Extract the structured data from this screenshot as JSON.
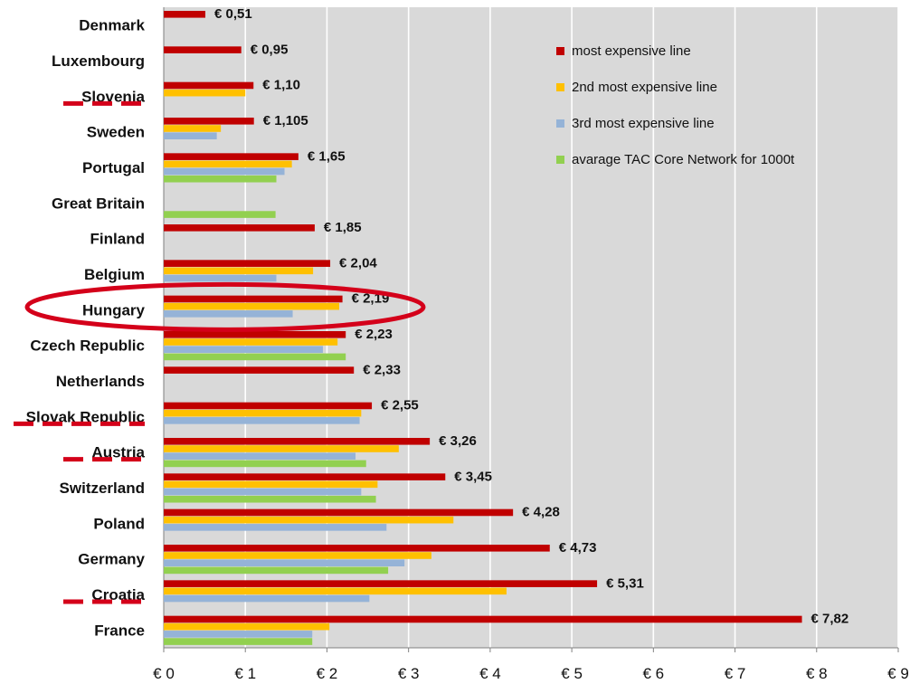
{
  "chart_data": {
    "type": "bar",
    "orientation": "horizontal",
    "xlim": [
      0,
      9
    ],
    "x_ticks": [
      "€ 0",
      "€ 1",
      "€ 2",
      "€ 3",
      "€ 4",
      "€ 5",
      "€ 6",
      "€ 7",
      "€ 8",
      "€ 9"
    ],
    "categories": [
      "Denmark",
      "Luxembourg",
      "Slovenia",
      "Sweden",
      "Portugal",
      "Great Britain",
      "Finland",
      "Belgium",
      "Hungary",
      "Czech Republic",
      "Netherlands",
      "Slovak Republic",
      "Austria",
      "Switzerland",
      "Poland",
      "Germany",
      "Croatia",
      "France"
    ],
    "series": [
      {
        "name": "most expensive line",
        "color": "#c00000",
        "values": [
          0.51,
          0.95,
          1.1,
          1.105,
          1.65,
          null,
          1.85,
          2.04,
          2.19,
          2.23,
          2.33,
          2.55,
          3.26,
          3.45,
          4.28,
          4.73,
          5.31,
          7.82
        ]
      },
      {
        "name": "2nd most expensive line",
        "color": "#ffc000",
        "values": [
          null,
          null,
          1.0,
          0.7,
          1.57,
          null,
          null,
          1.83,
          2.15,
          2.13,
          null,
          2.42,
          2.88,
          2.62,
          3.55,
          3.28,
          4.2,
          2.03
        ]
      },
      {
        "name": "3rd most expensive line",
        "color": "#95b3d7",
        "values": [
          null,
          null,
          null,
          0.65,
          1.48,
          null,
          null,
          1.38,
          1.58,
          1.95,
          null,
          2.4,
          2.35,
          2.42,
          2.73,
          2.95,
          2.52,
          1.82
        ]
      },
      {
        "name": "avarage TAC Core Network for 1000t",
        "color": "#92d050",
        "values": [
          null,
          null,
          null,
          null,
          1.38,
          1.37,
          null,
          null,
          null,
          2.23,
          null,
          null,
          2.48,
          2.6,
          null,
          2.75,
          null,
          1.82
        ]
      }
    ],
    "value_labels": [
      "€ 0,51",
      "€ 0,95",
      "€ 1,10",
      "€ 1,105",
      "€ 1,65",
      "",
      "€ 1,85",
      "€ 2,04",
      "€ 2,19",
      "€ 2,23",
      "€ 2,33",
      "€ 2,55",
      "€ 3,26",
      "€ 3,45",
      "€ 4,28",
      "€ 4,73",
      "€ 5,31",
      "€ 7,82"
    ],
    "grid": true,
    "legend_position": "top-right",
    "annotations": {
      "highlighted_country": "Hungary",
      "dashed_underline_countries": [
        "Slovenia",
        "Slovak Republic",
        "Austria",
        "Croatia"
      ],
      "highlight_color": "#d4001a"
    }
  }
}
